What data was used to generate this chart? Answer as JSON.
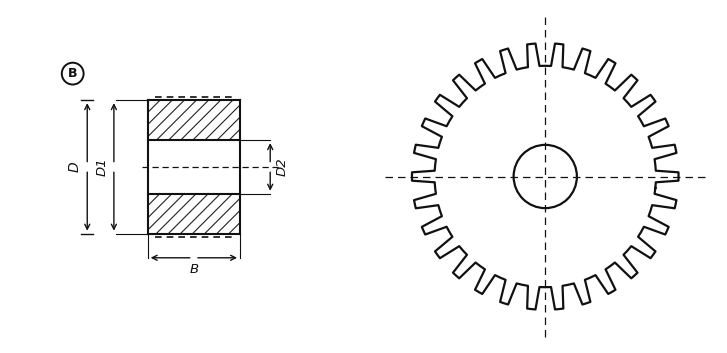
{
  "bg_color": "#ffffff",
  "line_color": "#111111",
  "num_teeth": 30,
  "label_B": "B",
  "label_D": "D",
  "label_D1": "D1",
  "label_D2": "D2"
}
